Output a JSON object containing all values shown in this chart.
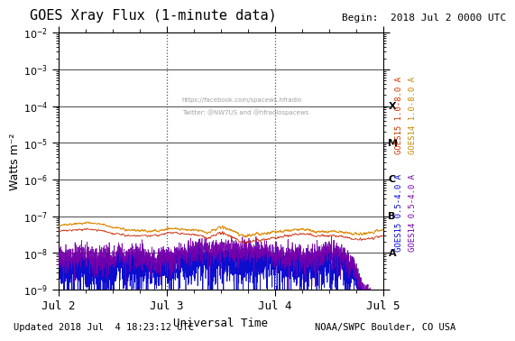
{
  "title": "GOES Xray Flux (1-minute data)",
  "begin_label": "Begin:  2018 Jul 2 0000 UTC",
  "xlabel": "Universal Time",
  "ylabel": "Watts m⁻²",
  "updated_label": "Updated 2018 Jul  4 18:23:12 UTC",
  "credit_label": "NOAA/SWPC Boulder, CO USA",
  "watermark_line1": "https://facebook.com/spacews.hfradio",
  "watermark_line2": "Twitter: @NW7US and @hfradiospacews",
  "xmin": 0,
  "xmax": 4320,
  "ymin": 1e-09,
  "ymax": 0.01,
  "flare_class_labels": [
    {
      "label": "X",
      "value": 0.0001
    },
    {
      "label": "M",
      "value": 1e-05
    },
    {
      "label": "C",
      "value": 1e-06
    },
    {
      "label": "B",
      "value": 1e-07
    },
    {
      "label": "A",
      "value": 1e-08
    }
  ],
  "right_axis_label_1": {
    "text": "GOES15 1.0-8.0 A",
    "color": "#cc3300"
  },
  "right_axis_label_2": {
    "text": "GOES14 1.0-8.0 A",
    "color": "#cc8800"
  },
  "right_axis_label_3": {
    "text": "GOES15 0.5-4.0 A",
    "color": "#0000dd"
  },
  "right_axis_label_4": {
    "text": "GOES14 0.5-4.0 A",
    "color": "#7700aa"
  },
  "vline_positions": [
    1440,
    2880
  ],
  "bg_color": "#ffffff",
  "plot_bg_color": "#ffffff",
  "seed": 42
}
